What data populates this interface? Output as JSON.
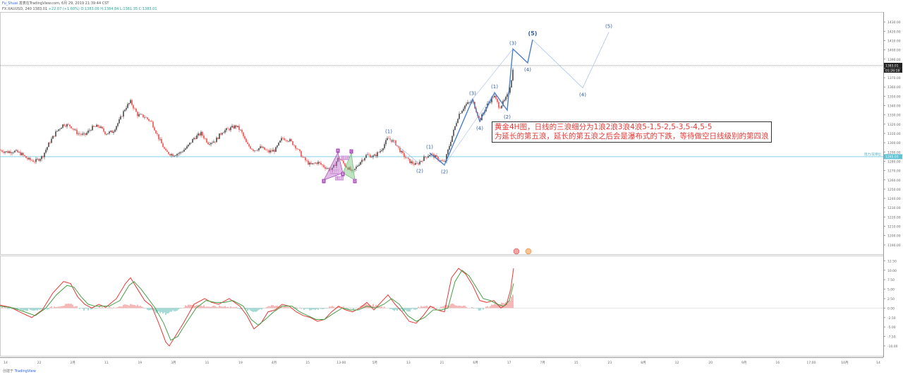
{
  "header": {
    "author": "Fu_Shuai",
    "published": "发表在TradingView.com, 6月 29, 2019 21:39:44 CST",
    "symbol_line": "FX:XAUUSD, 240 1383.01",
    "change": "+22.07 (+1.60%)",
    "ohlc": "O:1383.06 H:1384.84 L:1381.35 C:1383.01"
  },
  "annotation": {
    "line1": "黄金4H图，日线的三浪细分为1浪2浪3浪4浪5-1,5-2,5-3,5-4,5-5",
    "line2": "为延长的第五浪，延长的第五浪之后会是瀑布式的下跌，等待做空日线级别的第四浪"
  },
  "footer": {
    "created": "创建于",
    "logo": "TradingView"
  },
  "colors": {
    "up": "#26a69a",
    "down": "#ef5350",
    "wave": "#4a7fc9",
    "wave_light": "#9dbde6",
    "macd": "#e53935",
    "signal": "#43a047",
    "support": "#7fd3e3",
    "hist_up": "#80cbc4",
    "hist_down": "#ef9a9a"
  },
  "chart_data": [
    {
      "type": "candlestick",
      "ylim": [
        1180,
        1440
      ],
      "y_ticks": [
        "1430.00",
        "1420.00",
        "1410.00",
        "1400.00",
        "1390.00",
        "1380.00",
        "1370.00",
        "1360.00",
        "1350.00",
        "1340.00",
        "1330.00",
        "1320.00",
        "1310.00",
        "1300.00",
        "1290.00",
        "1280.00",
        "1270.00",
        "1260.00",
        "1250.00",
        "1240.00",
        "1230.00",
        "1220.00",
        "1210.00",
        "1200.00",
        "1190.00"
      ],
      "last_price": "1383.01",
      "countdown": "01:26:18",
      "support_level": 1285,
      "support_price": "1285.03",
      "support_label": "阻力/支撑位",
      "x_ticks": [
        "14",
        "22",
        "2月",
        "11",
        "19",
        "3月",
        "11",
        "19",
        "4月",
        "15",
        "13-00",
        "5月",
        "13",
        "21",
        "6月",
        "17",
        "7月",
        "15",
        "23",
        "8月",
        "12",
        "20",
        "9月",
        "16",
        "17:00",
        "10月",
        "14"
      ],
      "close_path": [
        [
          0,
          1292
        ],
        [
          10,
          1290
        ],
        [
          20,
          1291
        ],
        [
          30,
          1288
        ],
        [
          40,
          1282
        ],
        [
          50,
          1280
        ],
        [
          60,
          1285
        ],
        [
          70,
          1300
        ],
        [
          80,
          1312
        ],
        [
          90,
          1320
        ],
        [
          100,
          1318
        ],
        [
          110,
          1310
        ],
        [
          120,
          1308
        ],
        [
          130,
          1316
        ],
        [
          140,
          1318
        ],
        [
          150,
          1310
        ],
        [
          160,
          1312
        ],
        [
          170,
          1325
        ],
        [
          178,
          1338
        ],
        [
          185,
          1344
        ],
        [
          195,
          1330
        ],
        [
          205,
          1328
        ],
        [
          215,
          1322
        ],
        [
          225,
          1305
        ],
        [
          235,
          1290
        ],
        [
          245,
          1287
        ],
        [
          255,
          1289
        ],
        [
          265,
          1295
        ],
        [
          275,
          1305
        ],
        [
          285,
          1310
        ],
        [
          295,
          1300
        ],
        [
          305,
          1302
        ],
        [
          315,
          1312
        ],
        [
          325,
          1315
        ],
        [
          335,
          1318
        ],
        [
          342,
          1312
        ],
        [
          350,
          1298
        ],
        [
          360,
          1292
        ],
        [
          370,
          1295
        ],
        [
          380,
          1290
        ],
        [
          390,
          1292
        ],
        [
          400,
          1305
        ],
        [
          410,
          1303
        ],
        [
          420,
          1295
        ],
        [
          430,
          1283
        ],
        [
          440,
          1276
        ],
        [
          450,
          1279
        ],
        [
          460,
          1274
        ],
        [
          470,
          1270
        ],
        [
          480,
          1284
        ],
        [
          490,
          1275
        ],
        [
          500,
          1268
        ],
        [
          510,
          1279
        ],
        [
          520,
          1287
        ],
        [
          530,
          1285
        ],
        [
          540,
          1292
        ],
        [
          550,
          1305
        ],
        [
          560,
          1300
        ],
        [
          570,
          1288
        ],
        [
          580,
          1280
        ],
        [
          590,
          1276
        ],
        [
          600,
          1283
        ],
        [
          610,
          1288
        ],
        [
          620,
          1283
        ],
        [
          630,
          1278
        ],
        [
          640,
          1305
        ],
        [
          650,
          1330
        ],
        [
          660,
          1341
        ],
        [
          670,
          1345
        ],
        [
          680,
          1324
        ],
        [
          690,
          1340
        ],
        [
          700,
          1351
        ],
        [
          708,
          1338
        ],
        [
          715,
          1345
        ],
        [
          720,
          1352
        ],
        [
          724,
          1364
        ],
        [
          728,
          1383
        ]
      ],
      "waves": {
        "primary": [
          {
            "label": "(1)",
            "x": 551,
            "y": 1305
          },
          {
            "label": "(2)",
            "x": 595,
            "y": 1277
          },
          {
            "label": "(1)",
            "x": 609,
            "y": 1289
          },
          {
            "label": "(2)",
            "x": 630,
            "y": 1276
          },
          {
            "label": "(3)",
            "x": 670,
            "y": 1347
          },
          {
            "label": "(4)",
            "x": 680,
            "y": 1323
          },
          {
            "label": "(1)",
            "x": 701,
            "y": 1354
          },
          {
            "label": "(2)",
            "x": 719,
            "y": 1335
          },
          {
            "label": "(3)",
            "x": 727,
            "y": 1401
          },
          {
            "label": "(4)",
            "x": 748,
            "y": 1386
          },
          {
            "label": "(5)",
            "x": 755,
            "y": 1411
          },
          {
            "label": "(4)",
            "x": 826,
            "y": 1359
          },
          {
            "label": "(5)",
            "x": 863,
            "y": 1419
          }
        ]
      },
      "harmonic_labels": [
        "A",
        "C",
        "X",
        "B",
        "D",
        "0.851",
        "1.618",
        "1.001"
      ]
    },
    {
      "type": "line",
      "ylim": [
        -11.5,
        13.5
      ],
      "y_ticks": [
        "12.50",
        "10.00",
        "7.50",
        "5.00",
        "2.50",
        "0.00",
        "-2.50",
        "-5.00",
        "-7.50",
        "-10.00"
      ],
      "series": [
        {
          "values": [
            [
              0,
              0.8
            ],
            [
              15,
              0.2
            ],
            [
              30,
              -1.2
            ],
            [
              45,
              -2.5
            ],
            [
              60,
              -0.5
            ],
            [
              75,
              4
            ],
            [
              90,
              7
            ],
            [
              100,
              6.5
            ],
            [
              110,
              3
            ],
            [
              120,
              1
            ],
            [
              130,
              0
            ],
            [
              140,
              1
            ],
            [
              150,
              0.2
            ],
            [
              165,
              2.5
            ],
            [
              178,
              6.5
            ],
            [
              185,
              8
            ],
            [
              195,
              5
            ],
            [
              205,
              2
            ],
            [
              215,
              0.5
            ],
            [
              225,
              -4
            ],
            [
              235,
              -9
            ],
            [
              240,
              -10
            ],
            [
              250,
              -7
            ],
            [
              260,
              -4
            ],
            [
              275,
              1
            ],
            [
              290,
              2.5
            ],
            [
              300,
              1.5
            ],
            [
              310,
              1
            ],
            [
              325,
              2.5
            ],
            [
              340,
              0.5
            ],
            [
              350,
              -2
            ],
            [
              360,
              -5.5
            ],
            [
              370,
              -4
            ],
            [
              380,
              -1
            ],
            [
              390,
              -0.5
            ],
            [
              400,
              1
            ],
            [
              410,
              0.5
            ],
            [
              420,
              -1
            ],
            [
              430,
              -2
            ],
            [
              440,
              -2.5
            ],
            [
              450,
              -3.5
            ],
            [
              460,
              -3
            ],
            [
              470,
              -1
            ],
            [
              480,
              0.5
            ],
            [
              490,
              -0.5
            ],
            [
              500,
              -1
            ],
            [
              510,
              0
            ],
            [
              520,
              1.5
            ],
            [
              530,
              -0.5
            ],
            [
              540,
              1.5
            ],
            [
              550,
              3.5
            ],
            [
              560,
              1
            ],
            [
              570,
              -1
            ],
            [
              580,
              -3.5
            ],
            [
              590,
              -4
            ],
            [
              600,
              -2
            ],
            [
              610,
              0.5
            ],
            [
              620,
              -0.5
            ],
            [
              630,
              -1
            ],
            [
              640,
              8
            ],
            [
              650,
              10.5
            ],
            [
              660,
              9
            ],
            [
              670,
              6
            ],
            [
              680,
              2
            ],
            [
              690,
              1.5
            ],
            [
              700,
              2
            ],
            [
              710,
              0
            ],
            [
              718,
              1
            ],
            [
              724,
              5
            ],
            [
              728,
              10.5
            ]
          ]
        },
        {
          "values": [
            [
              0,
              0.5
            ],
            [
              20,
              0
            ],
            [
              35,
              -1
            ],
            [
              50,
              -2
            ],
            [
              65,
              0
            ],
            [
              80,
              3.5
            ],
            [
              95,
              6
            ],
            [
              105,
              5.5
            ],
            [
              115,
              3
            ],
            [
              125,
              1
            ],
            [
              135,
              0.5
            ],
            [
              145,
              0.5
            ],
            [
              155,
              0.5
            ],
            [
              170,
              2
            ],
            [
              183,
              6
            ],
            [
              190,
              7
            ],
            [
              200,
              5
            ],
            [
              210,
              2.5
            ],
            [
              220,
              0
            ],
            [
              232,
              -4
            ],
            [
              242,
              -8.5
            ],
            [
              252,
              -7.5
            ],
            [
              262,
              -4.5
            ],
            [
              278,
              0
            ],
            [
              292,
              2
            ],
            [
              305,
              1.5
            ],
            [
              318,
              1.5
            ],
            [
              330,
              2
            ],
            [
              345,
              0.5
            ],
            [
              356,
              -3
            ],
            [
              366,
              -4.5
            ],
            [
              376,
              -3
            ],
            [
              388,
              -1
            ],
            [
              400,
              0.5
            ],
            [
              414,
              0.5
            ],
            [
              425,
              -1
            ],
            [
              436,
              -2
            ],
            [
              448,
              -3
            ],
            [
              460,
              -3
            ],
            [
              472,
              -1.5
            ],
            [
              485,
              0
            ],
            [
              497,
              -0.5
            ],
            [
              508,
              -0.5
            ],
            [
              520,
              0.5
            ],
            [
              532,
              0
            ],
            [
              544,
              1
            ],
            [
              555,
              2.5
            ],
            [
              566,
              1
            ],
            [
              578,
              -2
            ],
            [
              590,
              -3.5
            ],
            [
              602,
              -2.5
            ],
            [
              614,
              -0.5
            ],
            [
              626,
              -0.5
            ],
            [
              635,
              0
            ],
            [
              645,
              7
            ],
            [
              655,
              10
            ],
            [
              665,
              8.5
            ],
            [
              675,
              5.5
            ],
            [
              685,
              2.5
            ],
            [
              695,
              2
            ],
            [
              705,
              1
            ],
            [
              714,
              0.5
            ],
            [
              722,
              2
            ],
            [
              728,
              6.5
            ]
          ]
        }
      ],
      "histogram": [
        [
          0,
          0.3
        ],
        [
          20,
          -0.3
        ],
        [
          40,
          -0.5
        ],
        [
          60,
          -0.5
        ],
        [
          80,
          0.5
        ],
        [
          100,
          1
        ],
        [
          120,
          -0.5
        ],
        [
          140,
          0.3
        ],
        [
          160,
          0
        ],
        [
          180,
          1
        ],
        [
          200,
          0.5
        ],
        [
          220,
          -1
        ],
        [
          235,
          -1.5
        ],
        [
          250,
          -0.5
        ],
        [
          270,
          1
        ],
        [
          300,
          0.3
        ],
        [
          320,
          0.5
        ],
        [
          340,
          0
        ],
        [
          360,
          -1
        ],
        [
          380,
          0.5
        ],
        [
          400,
          0.5
        ],
        [
          420,
          0
        ],
        [
          440,
          -0.5
        ],
        [
          460,
          0
        ],
        [
          480,
          0.5
        ],
        [
          500,
          -0.3
        ],
        [
          520,
          1
        ],
        [
          540,
          0.5
        ],
        [
          560,
          -0.5
        ],
        [
          580,
          -0.7
        ],
        [
          600,
          0.5
        ],
        [
          620,
          0
        ],
        [
          640,
          1
        ],
        [
          650,
          0.5
        ],
        [
          660,
          0.5
        ],
        [
          680,
          -0.5
        ],
        [
          700,
          1
        ],
        [
          720,
          1.5
        ],
        [
          728,
          3.5
        ]
      ]
    }
  ]
}
